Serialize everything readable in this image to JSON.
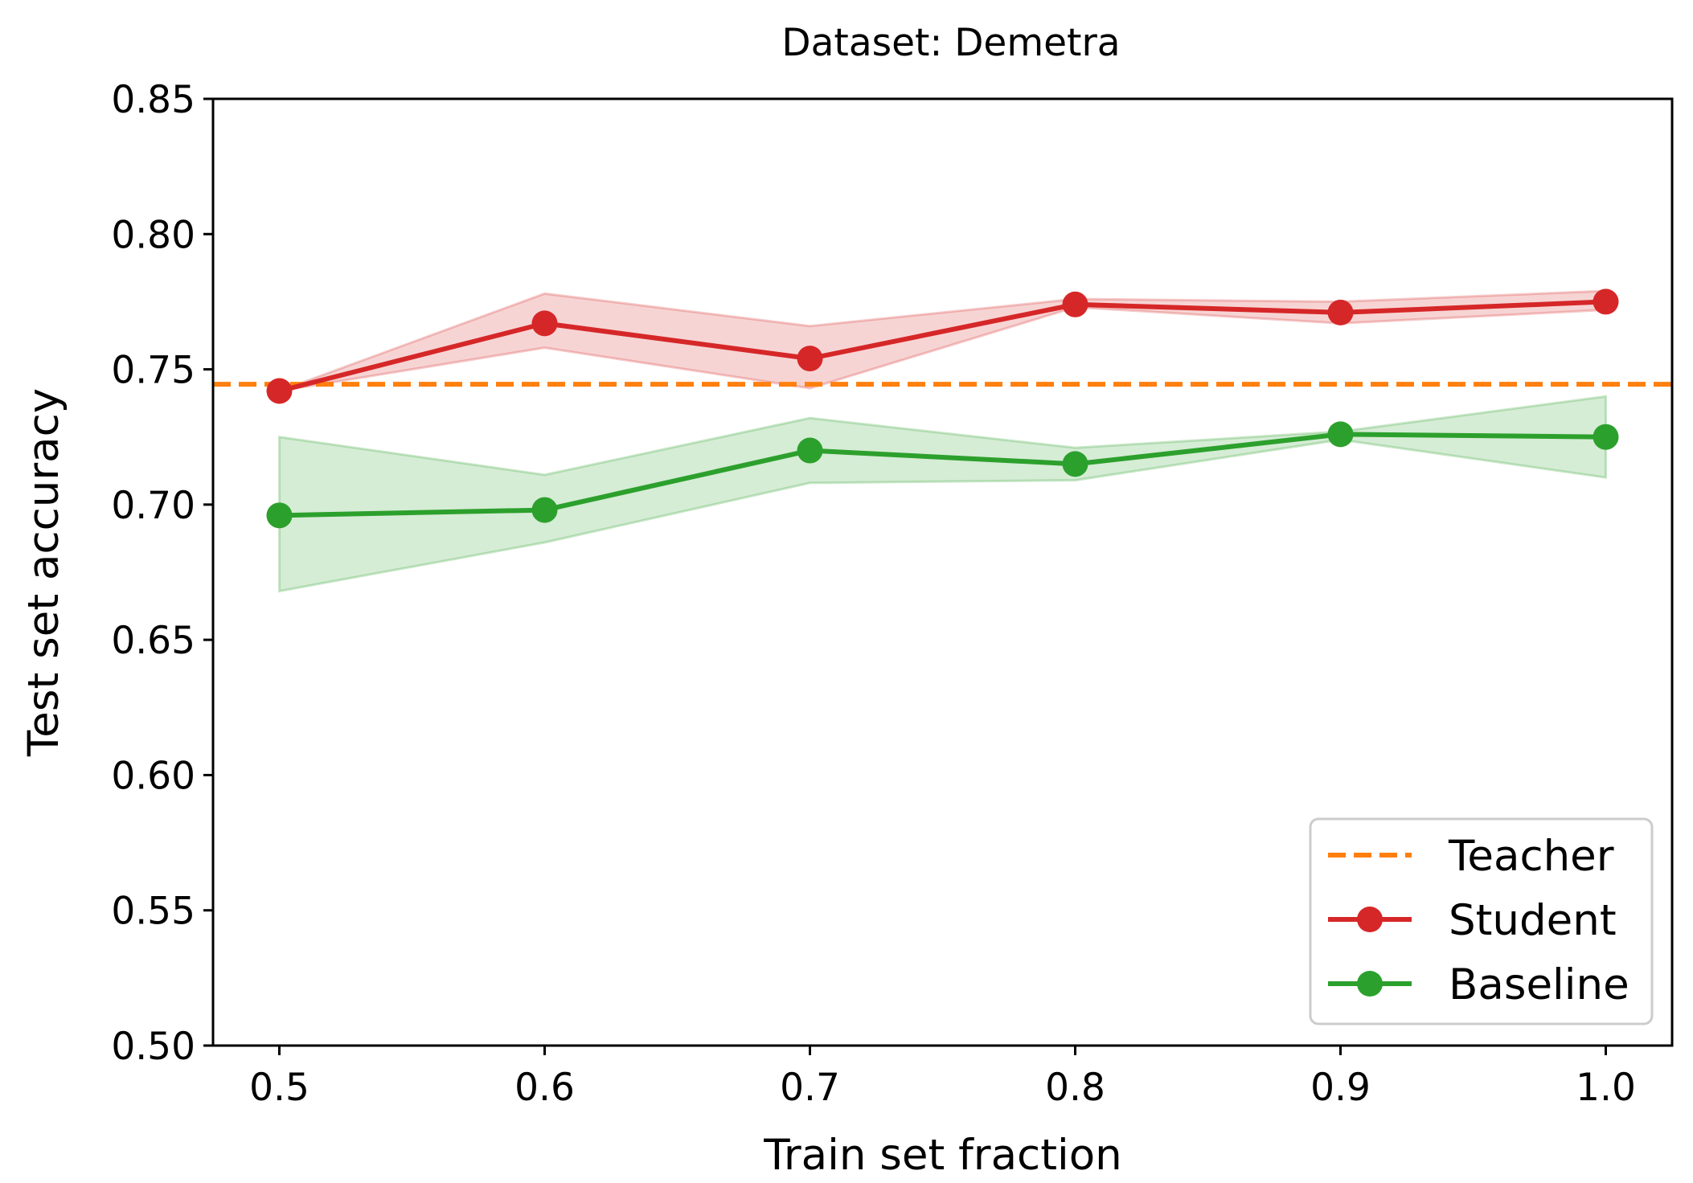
{
  "chart_data": {
    "type": "line",
    "title": "Dataset: Demetra",
    "xlabel": "Train set fraction",
    "ylabel": "Test set accuracy",
    "xlim": [
      0.475,
      1.025
    ],
    "ylim": [
      0.5,
      0.85
    ],
    "x": [
      0.5,
      0.6,
      0.7,
      0.8,
      0.9,
      1.0
    ],
    "xticks": [
      0.5,
      0.6,
      0.7,
      0.8,
      0.9,
      1.0
    ],
    "xtick_labels": [
      "0.5",
      "0.6",
      "0.7",
      "0.8",
      "0.9",
      "1.0"
    ],
    "yticks": [
      0.5,
      0.55,
      0.6,
      0.65,
      0.7,
      0.75,
      0.8,
      0.85
    ],
    "ytick_labels": [
      "0.50",
      "0.55",
      "0.60",
      "0.65",
      "0.70",
      "0.75",
      "0.80",
      "0.85"
    ],
    "grid": false,
    "legend_position": "bottom-right",
    "teacher": {
      "name": "Teacher",
      "value": 0.7445,
      "color": "#ff7f0e",
      "style": "dashed"
    },
    "series": [
      {
        "name": "Student",
        "color": "#d62728",
        "values": [
          0.742,
          0.767,
          0.754,
          0.774,
          0.771,
          0.775
        ],
        "lower": [
          0.742,
          0.758,
          0.743,
          0.773,
          0.767,
          0.772
        ],
        "upper": [
          0.742,
          0.778,
          0.766,
          0.776,
          0.775,
          0.779
        ]
      },
      {
        "name": "Baseline",
        "color": "#2ca02c",
        "values": [
          0.696,
          0.698,
          0.72,
          0.715,
          0.726,
          0.725
        ],
        "lower": [
          0.668,
          0.686,
          0.708,
          0.709,
          0.724,
          0.71
        ],
        "upper": [
          0.725,
          0.711,
          0.732,
          0.721,
          0.727,
          0.74
        ]
      }
    ]
  }
}
